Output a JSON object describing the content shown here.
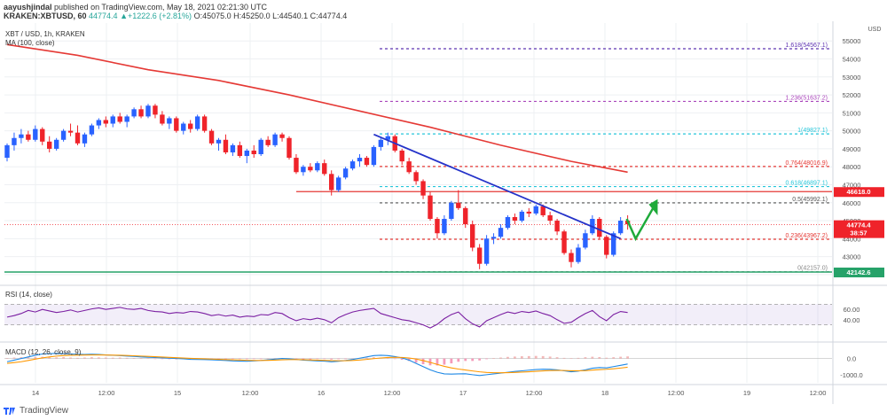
{
  "header": {
    "author": "aayushjindal",
    "published": "published on TradingView.com, May 18, 2021 02:21:30 UTC",
    "symbol": "KRAKEN:XBTUSD, 60",
    "last": "44774.4",
    "change": "▲+1222.6 (+2.81%)",
    "ohlc": "O:45075.0 H:45250.0 L:44540.1 C:44774.4"
  },
  "legend": {
    "title": "XBT / USD, 1h, KRAKEN",
    "ma": "MA (100, close)",
    "rsi": "RSI (14, close)",
    "macd": "MACD (12, 26, close, 9)"
  },
  "footer": {
    "brand": "TradingView"
  },
  "colors": {
    "up": "#2962ff",
    "down": "#ef232a",
    "ma": "#e53935",
    "trend": "#2432c9",
    "resistance": "#e53935",
    "support": "#26a269",
    "fib_top": "#5e35b1",
    "fib_mid": "#26c6da",
    "fib_low": "#e53935",
    "rsi": "#7b1fa2",
    "macd": "#1e88e5",
    "signal": "#ff9800",
    "arrow": "#1faa3a"
  },
  "chart_data": [
    {
      "type": "candlestick",
      "title": "XBT / USD, 1h, KRAKEN",
      "x_labels": [
        "14",
        "12:00",
        "15",
        "12:00",
        "16",
        "12:00",
        "17",
        "12:00",
        "18",
        "12:00",
        "19",
        "12:00"
      ],
      "ylim": [
        41600,
        55800
      ],
      "y_ticks": [
        42000,
        43000,
        44000,
        45000,
        46000,
        47000,
        48000,
        49000,
        50000,
        51000,
        52000,
        53000,
        54000,
        55000
      ],
      "y_axis_label": "USD",
      "candles": [
        [
          48500,
          49300,
          48300,
          49200
        ],
        [
          49200,
          49900,
          48900,
          49600
        ],
        [
          49600,
          50100,
          49300,
          49800
        ],
        [
          49800,
          50000,
          49400,
          49500
        ],
        [
          49500,
          50300,
          49400,
          50100
        ],
        [
          50100,
          50200,
          49200,
          49400
        ],
        [
          49400,
          49700,
          48800,
          49000
        ],
        [
          49000,
          49600,
          48900,
          49500
        ],
        [
          49500,
          50100,
          49400,
          50000
        ],
        [
          50000,
          50400,
          49700,
          49900
        ],
        [
          49900,
          50300,
          49200,
          49300
        ],
        [
          49300,
          49900,
          49100,
          49800
        ],
        [
          49800,
          50400,
          49700,
          50300
        ],
        [
          50300,
          50700,
          50100,
          50600
        ],
        [
          50600,
          50800,
          50200,
          50400
        ],
        [
          50400,
          50900,
          50200,
          50800
        ],
        [
          50800,
          51000,
          50400,
          50500
        ],
        [
          50500,
          50900,
          50200,
          50800
        ],
        [
          50800,
          51300,
          50700,
          51200
        ],
        [
          51200,
          51400,
          50700,
          50800
        ],
        [
          50800,
          51500,
          50700,
          51400
        ],
        [
          51400,
          51500,
          50700,
          50900
        ],
        [
          50900,
          51100,
          50300,
          50400
        ],
        [
          50400,
          50800,
          50100,
          50700
        ],
        [
          50700,
          50800,
          49900,
          50000
        ],
        [
          50000,
          50500,
          49800,
          50400
        ],
        [
          50400,
          50600,
          49900,
          50100
        ],
        [
          50100,
          50900,
          50000,
          50800
        ],
        [
          50800,
          50900,
          49900,
          50000
        ],
        [
          50000,
          50100,
          49200,
          49300
        ],
        [
          49300,
          49600,
          48900,
          49500
        ],
        [
          49500,
          49800,
          48700,
          48800
        ],
        [
          48800,
          49300,
          48600,
          49200
        ],
        [
          49200,
          49400,
          48500,
          48600
        ],
        [
          48600,
          49000,
          48200,
          48900
        ],
        [
          48900,
          49200,
          48500,
          48700
        ],
        [
          48700,
          49600,
          48600,
          49500
        ],
        [
          49500,
          49700,
          49100,
          49200
        ],
        [
          49200,
          49900,
          49100,
          49800
        ],
        [
          49800,
          49900,
          49400,
          49600
        ],
        [
          49600,
          49700,
          48400,
          48500
        ],
        [
          48500,
          48700,
          47600,
          47700
        ],
        [
          47700,
          48100,
          47500,
          48000
        ],
        [
          48000,
          48200,
          47700,
          47800
        ],
        [
          47800,
          48300,
          47700,
          48200
        ],
        [
          48200,
          48400,
          47500,
          47600
        ],
        [
          47600,
          47800,
          46400,
          46700
        ],
        [
          46700,
          47500,
          46600,
          47400
        ],
        [
          47400,
          48000,
          47300,
          47900
        ],
        [
          47900,
          48400,
          47800,
          48300
        ],
        [
          48300,
          48700,
          48000,
          48500
        ],
        [
          48500,
          48600,
          48000,
          48100
        ],
        [
          48100,
          49200,
          48000,
          49100
        ],
        [
          49100,
          49600,
          48900,
          49500
        ],
        [
          49500,
          49900,
          49200,
          49700
        ],
        [
          49700,
          49800,
          48800,
          48900
        ],
        [
          48900,
          49000,
          48100,
          48300
        ],
        [
          48300,
          48500,
          47600,
          47700
        ],
        [
          47700,
          47800,
          47000,
          47200
        ],
        [
          47200,
          47300,
          46200,
          46400
        ],
        [
          46400,
          46600,
          45000,
          45100
        ],
        [
          45100,
          45200,
          44000,
          44300
        ],
        [
          44300,
          45300,
          44200,
          45100
        ],
        [
          45100,
          46100,
          45000,
          46000
        ],
        [
          46000,
          46700,
          45600,
          45700
        ],
        [
          45700,
          45800,
          44600,
          44800
        ],
        [
          44800,
          45000,
          43300,
          43500
        ],
        [
          43500,
          43700,
          42300,
          42600
        ],
        [
          42600,
          44200,
          42500,
          44000
        ],
        [
          44000,
          44300,
          43700,
          44100
        ],
        [
          44100,
          44800,
          44000,
          44600
        ],
        [
          44600,
          45300,
          44500,
          45200
        ],
        [
          45200,
          45400,
          44800,
          45000
        ],
        [
          45000,
          45600,
          44900,
          45500
        ],
        [
          45500,
          45700,
          45200,
          45400
        ],
        [
          45400,
          45900,
          45300,
          45800
        ],
        [
          45800,
          45900,
          45200,
          45300
        ],
        [
          45300,
          45500,
          44800,
          45000
        ],
        [
          45000,
          45100,
          44200,
          44400
        ],
        [
          44400,
          44500,
          43100,
          43200
        ],
        [
          43200,
          43400,
          42400,
          42700
        ],
        [
          42700,
          43700,
          42600,
          43500
        ],
        [
          43500,
          44500,
          43400,
          44300
        ],
        [
          44300,
          45300,
          44200,
          45100
        ],
        [
          45100,
          45200,
          44000,
          44100
        ],
        [
          44100,
          44200,
          42900,
          43100
        ],
        [
          43100,
          44400,
          43000,
          44300
        ],
        [
          44300,
          45200,
          44200,
          45000
        ],
        [
          45000,
          45300,
          44500,
          44800
        ]
      ],
      "moving_average": [
        {
          "x": 0,
          "y": 54800
        },
        {
          "x": 10,
          "y": 54200
        },
        {
          "x": 20,
          "y": 53400
        },
        {
          "x": 30,
          "y": 52800
        },
        {
          "x": 40,
          "y": 52000
        },
        {
          "x": 50,
          "y": 51100
        },
        {
          "x": 60,
          "y": 50200
        },
        {
          "x": 70,
          "y": 49200
        },
        {
          "x": 80,
          "y": 48300
        },
        {
          "x": 88,
          "y": 47700
        }
      ],
      "fibonacci": [
        {
          "ratio": "1.618",
          "value": "54567.1",
          "y": 54567.1
        },
        {
          "ratio": "1.236",
          "value": "51637.2",
          "y": 51637.2
        },
        {
          "ratio": "1",
          "value": "49827.1",
          "y": 49827.1
        },
        {
          "ratio": "0.764",
          "value": "48016.9",
          "y": 48016.9
        },
        {
          "ratio": "0.618",
          "value": "46897.1",
          "y": 46897.1
        },
        {
          "ratio": "0.5",
          "value": "45992.1",
          "y": 45992.1
        },
        {
          "ratio": "0.236",
          "value": "43967.2",
          "y": 43967.2
        },
        {
          "ratio": "0",
          "value": "42157.0",
          "y": 42157.0
        }
      ],
      "fib_label_format": "{ratio}({value})",
      "resistance": {
        "y": 46618.0,
        "label": "46618.0"
      },
      "support": {
        "y": 42142.6,
        "label": "42142.6"
      },
      "last_price": {
        "y": 44774.4,
        "label": "44774.4",
        "countdown": "38:57"
      },
      "trendline": [
        {
          "x": 52,
          "y": 49800
        },
        {
          "x": 87,
          "y": 44000
        }
      ]
    },
    {
      "type": "line",
      "title": "RSI (14, close)",
      "ylim": [
        0,
        100
      ],
      "y_ticks": [
        40,
        60
      ],
      "band": [
        30,
        70
      ],
      "values": [
        45,
        48,
        52,
        58,
        55,
        60,
        57,
        54,
        56,
        59,
        55,
        58,
        61,
        63,
        60,
        62,
        64,
        61,
        60,
        62,
        58,
        56,
        55,
        52,
        54,
        53,
        56,
        55,
        52,
        48,
        50,
        47,
        49,
        45,
        47,
        46,
        50,
        49,
        54,
        52,
        44,
        38,
        42,
        40,
        43,
        40,
        34,
        44,
        50,
        55,
        58,
        60,
        62,
        52,
        48,
        44,
        40,
        38,
        34,
        30,
        24,
        31,
        42,
        50,
        55,
        42,
        32,
        26,
        38,
        44,
        50,
        55,
        52,
        56,
        54,
        57,
        52,
        48,
        40,
        33,
        35,
        44,
        52,
        58,
        46,
        38,
        50,
        56,
        54
      ]
    },
    {
      "type": "bar+line",
      "title": "MACD (12, 26, close, 9)",
      "ylim": [
        -1500,
        800
      ],
      "y_ticks": [
        0,
        -1000
      ],
      "y_tick_labels": [
        "0.0",
        "-1000.0"
      ],
      "histogram": [
        30,
        60,
        90,
        120,
        100,
        110,
        80,
        70,
        90,
        60,
        40,
        60,
        80,
        70,
        60,
        50,
        60,
        40,
        30,
        20,
        10,
        -10,
        -30,
        -40,
        -50,
        -40,
        -20,
        10,
        0,
        -20,
        -30,
        -40,
        -20,
        -30,
        -40,
        -30,
        -10,
        0,
        20,
        30,
        -10,
        -40,
        -60,
        -50,
        -30,
        -20,
        -60,
        -40,
        -20,
        0,
        30,
        50,
        80,
        60,
        20,
        -20,
        -80,
        -150,
        -250,
        -350,
        -420,
        -430,
        -380,
        -300,
        -200,
        -150,
        -150,
        -120,
        -40,
        20,
        60,
        100,
        120,
        140,
        150,
        160,
        150,
        120,
        80,
        40,
        10,
        40,
        80,
        110,
        90,
        50,
        80,
        110,
        130
      ],
      "macd": [
        -200,
        -100,
        0,
        100,
        200,
        280,
        300,
        320,
        300,
        280,
        260,
        250,
        260,
        250,
        220,
        200,
        180,
        150,
        130,
        100,
        80,
        60,
        40,
        20,
        0,
        -20,
        -50,
        -60,
        -70,
        -80,
        -100,
        -120,
        -150,
        -160,
        -170,
        -150,
        -120,
        -80,
        -40,
        0,
        -20,
        -60,
        -100,
        -120,
        -150,
        -160,
        -200,
        -170,
        -120,
        -60,
        20,
        100,
        180,
        200,
        180,
        120,
        40,
        -100,
        -300,
        -500,
        -700,
        -850,
        -950,
        -960,
        -950,
        -940,
        -1000,
        -1050,
        -1000,
        -950,
        -900,
        -850,
        -800,
        -760,
        -720,
        -680,
        -660,
        -670,
        -700,
        -760,
        -820,
        -780,
        -700,
        -600,
        -560,
        -580,
        -500,
        -420,
        -340
      ],
      "signal": [
        -300,
        -250,
        -200,
        -120,
        -40,
        40,
        100,
        150,
        180,
        200,
        210,
        215,
        220,
        220,
        215,
        210,
        200,
        185,
        170,
        150,
        130,
        110,
        90,
        70,
        50,
        30,
        10,
        -5,
        -20,
        -35,
        -50,
        -65,
        -80,
        -95,
        -110,
        -118,
        -120,
        -112,
        -98,
        -80,
        -70,
        -68,
        -75,
        -85,
        -98,
        -112,
        -130,
        -138,
        -135,
        -120,
        -92,
        -55,
        -8,
        33,
        62,
        74,
        67,
        34,
        -33,
        -127,
        -242,
        -364,
        -482,
        -578,
        -652,
        -710,
        -768,
        -823,
        -859,
        -877,
        -882,
        -876,
        -861,
        -841,
        -817,
        -789,
        -763,
        -744,
        -735,
        -740,
        -756,
        -760,
        -748,
        -718,
        -687,
        -665,
        -632,
        -589,
        -539
      ]
    }
  ]
}
